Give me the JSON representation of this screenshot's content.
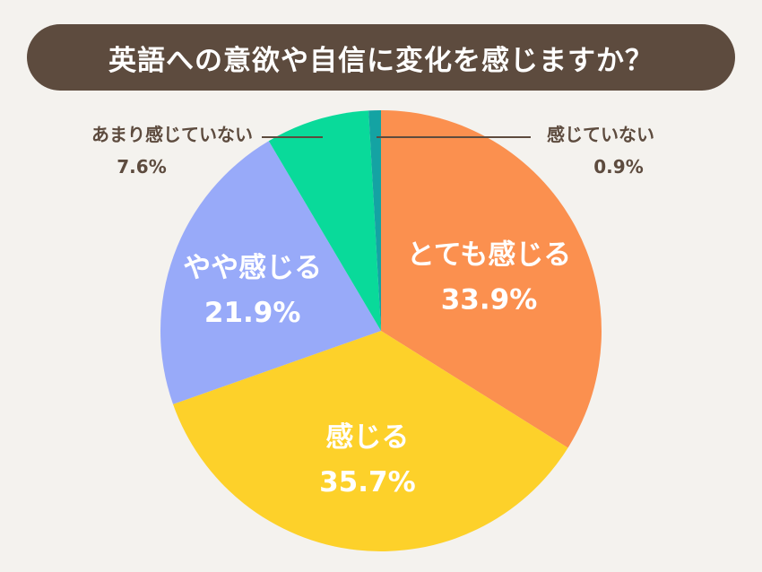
{
  "chart_data": {
    "type": "pie",
    "title": "英語への意欲や自信に変化を感じますか？",
    "slices": [
      {
        "label": "とても感じる",
        "value": 33.9,
        "value_text": "33.9%",
        "color": "#fb904f"
      },
      {
        "label": "感じる",
        "value": 35.7,
        "value_text": "35.7%",
        "color": "#fdd12a"
      },
      {
        "label": "やや感じる",
        "value": 21.9,
        "value_text": "21.9%",
        "color": "#98aaf9"
      },
      {
        "label": "あまり感じていない",
        "value": 7.6,
        "value_text": "7.6%",
        "color": "#09da9a"
      },
      {
        "label": "感じていない",
        "value": 0.9,
        "value_text": "0.9%",
        "color": "#14a3a3"
      }
    ],
    "start_angle_deg": 0,
    "direction": "clockwise",
    "legend": "none"
  },
  "colors": {
    "background": "#f4f2ee",
    "title_bar": "#5d4b3e",
    "label_text": "#5d4b3e"
  }
}
